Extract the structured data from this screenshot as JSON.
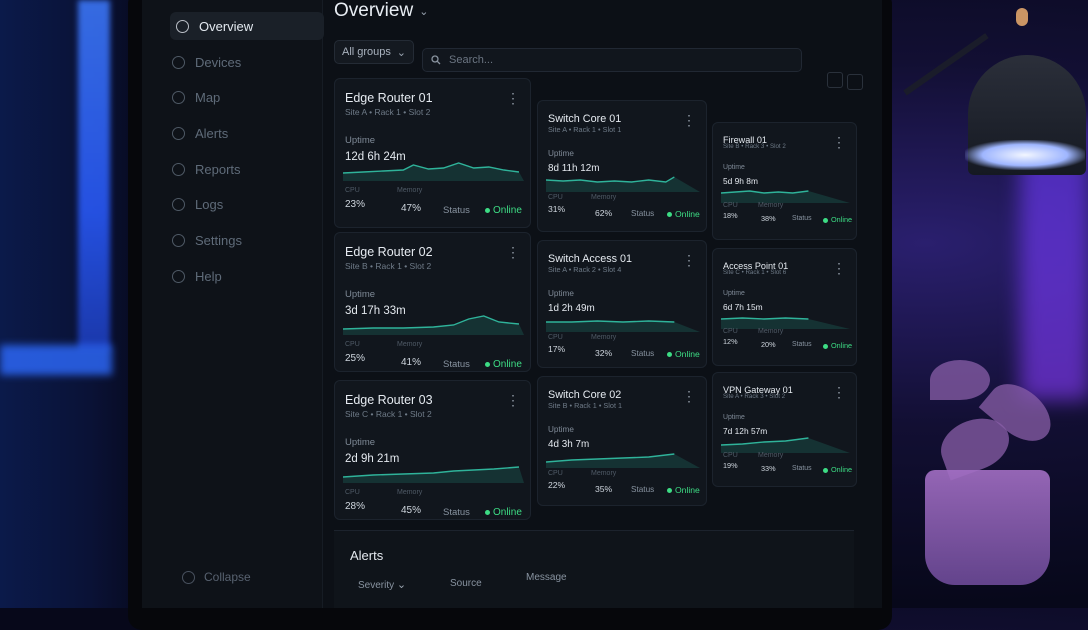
{
  "nav": {
    "items": [
      {
        "label": "Overview",
        "active": true,
        "icon": "grid-icon"
      },
      {
        "label": "Devices",
        "active": false,
        "icon": "server-icon"
      },
      {
        "label": "Map",
        "active": false,
        "icon": "map-icon"
      },
      {
        "label": "Alerts",
        "active": false,
        "icon": "bell-icon"
      },
      {
        "label": "Reports",
        "active": false,
        "icon": "chart-icon"
      },
      {
        "label": "Logs",
        "active": false,
        "icon": "list-icon"
      },
      {
        "label": "Settings",
        "active": false,
        "icon": "gear-icon"
      },
      {
        "label": "Help",
        "active": false,
        "icon": "help-icon"
      }
    ],
    "collapse_label": "Collapse"
  },
  "header": {
    "title": "Overview",
    "group_filter": "All groups",
    "search_placeholder": "Search..."
  },
  "labels": {
    "uptime": "Uptime",
    "cpu": "CPU",
    "memory": "Memory",
    "status": "Status"
  },
  "devices": [
    {
      "name": "Edge Router 01",
      "location": "Site A • Rack 1 • Slot 2",
      "uptime": "12d 6h 24m",
      "cpu": "23%",
      "memory": "47%",
      "status": "Online"
    },
    {
      "name": "Switch Core 01",
      "location": "Site A • Rack 1 • Slot 1",
      "uptime": "8d 11h 12m",
      "cpu": "31%",
      "memory": "62%",
      "status": "Online"
    },
    {
      "name": "Firewall 01",
      "location": "Site B • Rack 3 • Slot 2",
      "uptime": "5d 9h 8m",
      "cpu": "18%",
      "memory": "38%",
      "status": "Online"
    },
    {
      "name": "Edge Router 02",
      "location": "Site B • Rack 1 • Slot 2",
      "uptime": "3d 17h 33m",
      "cpu": "25%",
      "memory": "41%",
      "status": "Online"
    },
    {
      "name": "Switch Access 01",
      "location": "Site A • Rack 2 • Slot 4",
      "uptime": "1d 2h 49m",
      "cpu": "17%",
      "memory": "32%",
      "status": "Online"
    },
    {
      "name": "Access Point 01",
      "location": "Site C • Rack 1 • Slot 6",
      "uptime": "6d 7h 15m",
      "cpu": "12%",
      "memory": "20%",
      "status": "Online"
    },
    {
      "name": "Edge Router 03",
      "location": "Site C • Rack 1 • Slot 2",
      "uptime": "2d 9h 21m",
      "cpu": "28%",
      "memory": "45%",
      "status": "Online"
    },
    {
      "name": "Switch Core 02",
      "location": "Site B • Rack 1 • Slot 1",
      "uptime": "4d 3h 7m",
      "cpu": "22%",
      "memory": "35%",
      "status": "Online"
    },
    {
      "name": "VPN Gateway 01",
      "location": "Site A • Rack 3 • Slot 2",
      "uptime": "7d 12h 57m",
      "cpu": "19%",
      "memory": "33%",
      "status": "Online"
    }
  ],
  "alerts": {
    "title": "Alerts",
    "columns": [
      "Severity",
      "Source",
      "Message"
    ]
  },
  "colors": {
    "accent_online": "#3ddc84",
    "sparkline": "#2fb39a",
    "background": "#0c1016"
  }
}
